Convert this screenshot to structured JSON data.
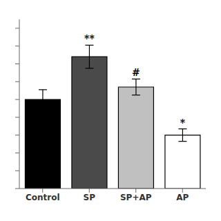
{
  "chart_data": {
    "type": "bar",
    "categories": [
      "Control",
      "SP",
      "SP+AP",
      "AP"
    ],
    "values": [
      0.5,
      0.74,
      0.57,
      0.3
    ],
    "errors": [
      0.055,
      0.065,
      0.045,
      0.035
    ],
    "colors": [
      "#000000",
      "#4a4a4a",
      "#c0c0c0",
      "#ffffff"
    ],
    "annotations": [
      null,
      "**",
      "#",
      "*"
    ],
    "ylim": [
      0,
      0.95
    ],
    "yticks": [
      0.0,
      0.1,
      0.2,
      0.3,
      0.4,
      0.5,
      0.6,
      0.7,
      0.8,
      0.9
    ],
    "tick_labels": "x",
    "grid": false
  }
}
